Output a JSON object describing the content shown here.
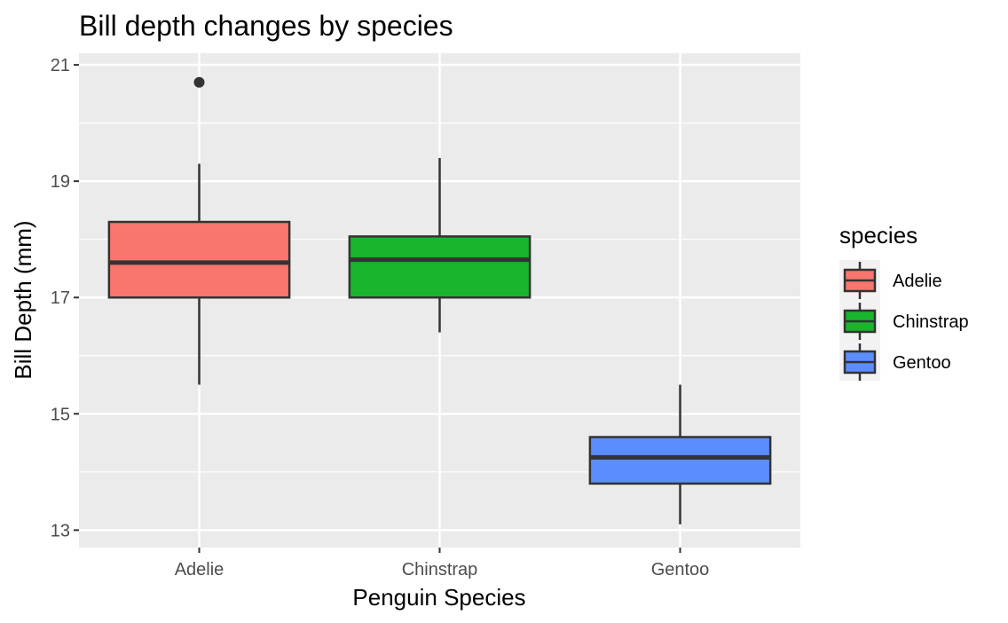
{
  "chart_data": {
    "type": "boxplot",
    "title": "Bill depth changes by species",
    "xlabel": "Penguin Species",
    "ylabel": "Bill Depth (mm)",
    "ylim": [
      12.7,
      21.2
    ],
    "yticks": [
      13,
      15,
      17,
      19,
      21
    ],
    "grid": true,
    "legend": {
      "title": "species",
      "position": "right"
    },
    "categories": [
      "Adelie",
      "Chinstrap",
      "Gentoo"
    ],
    "series": [
      {
        "name": "Adelie",
        "color": "#F8766D",
        "whisker_low": 15.5,
        "q1": 17.0,
        "median": 17.6,
        "q3": 18.3,
        "whisker_high": 19.3,
        "outliers": [
          20.7
        ]
      },
      {
        "name": "Chinstrap",
        "color": "#19B52C",
        "whisker_low": 16.4,
        "q1": 17.0,
        "median": 17.65,
        "q3": 18.05,
        "whisker_high": 19.4,
        "outliers": []
      },
      {
        "name": "Gentoo",
        "color": "#5C8DFF",
        "whisker_low": 13.1,
        "q1": 13.8,
        "median": 14.25,
        "q3": 14.6,
        "whisker_high": 15.5,
        "outliers": []
      }
    ]
  }
}
